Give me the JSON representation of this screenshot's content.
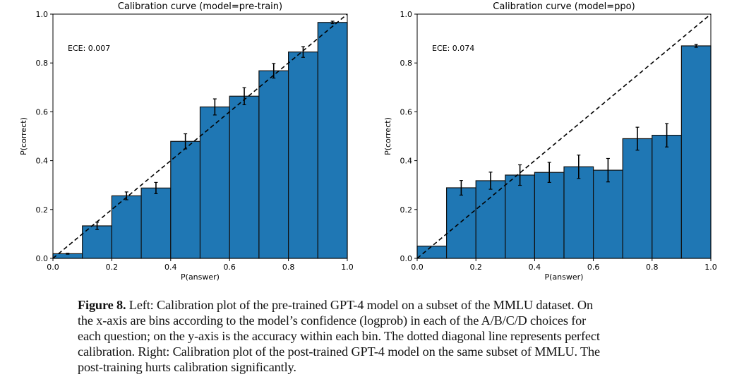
{
  "chart_data": [
    {
      "type": "bar",
      "title": "Calibration curve (model=pre-train)",
      "xlabel": "P(answer)",
      "ylabel": "P(correct)",
      "annotation": "ECE: 0.007",
      "xlim": [
        0,
        1
      ],
      "ylim": [
        0,
        1
      ],
      "xticks": [
        "0.0",
        "0.2",
        "0.4",
        "0.6",
        "0.8",
        "1.0"
      ],
      "yticks": [
        "0.0",
        "0.2",
        "0.4",
        "0.6",
        "0.8",
        "1.0"
      ],
      "bin_edges": [
        0,
        0.1,
        0.2,
        0.3,
        0.4,
        0.5,
        0.6,
        0.7,
        0.8,
        0.9,
        1.0
      ],
      "values": [
        0.019,
        0.133,
        0.256,
        0.288,
        0.479,
        0.62,
        0.664,
        0.768,
        0.845,
        0.966
      ],
      "errors": [
        0.002,
        0.015,
        0.016,
        0.023,
        0.031,
        0.033,
        0.035,
        0.03,
        0.022,
        0.005
      ],
      "reference_line": "diagonal dashed",
      "bar_color": "#1f77b4",
      "grid": false
    },
    {
      "type": "bar",
      "title": "Calibration curve (model=ppo)",
      "xlabel": "P(answer)",
      "ylabel": "P(correct)",
      "annotation": "ECE: 0.074",
      "xlim": [
        0,
        1
      ],
      "ylim": [
        0,
        1
      ],
      "xticks": [
        "0.0",
        "0.2",
        "0.4",
        "0.6",
        "0.8",
        "1.0"
      ],
      "yticks": [
        "0.0",
        "0.2",
        "0.4",
        "0.6",
        "0.8",
        "1.0"
      ],
      "bin_edges": [
        0,
        0.1,
        0.2,
        0.3,
        0.4,
        0.5,
        0.6,
        0.7,
        0.8,
        0.9,
        1.0
      ],
      "values": [
        0.05,
        0.289,
        0.318,
        0.341,
        0.352,
        0.375,
        0.361,
        0.49,
        0.504,
        0.87
      ],
      "errors": [
        0,
        0.03,
        0.035,
        0.042,
        0.041,
        0.048,
        0.048,
        0.047,
        0.048,
        0.006
      ],
      "reference_line": "diagonal dashed",
      "bar_color": "#1f77b4",
      "grid": false
    }
  ],
  "caption": {
    "label": "Figure 8.",
    "lines": [
      " Left: Calibration plot of the pre-trained GPT-4 model on a subset of the MMLU dataset. On",
      "the x-axis are bins according to the model’s confidence (logprob) in each of the A/B/C/D choices for",
      "each question; on the y-axis is the accuracy within each bin. The dotted diagonal line represents perfect",
      "calibration. Right: Calibration plot of the post-trained GPT-4 model on the same subset of MMLU. The",
      "post-training hurts calibration significantly."
    ]
  }
}
